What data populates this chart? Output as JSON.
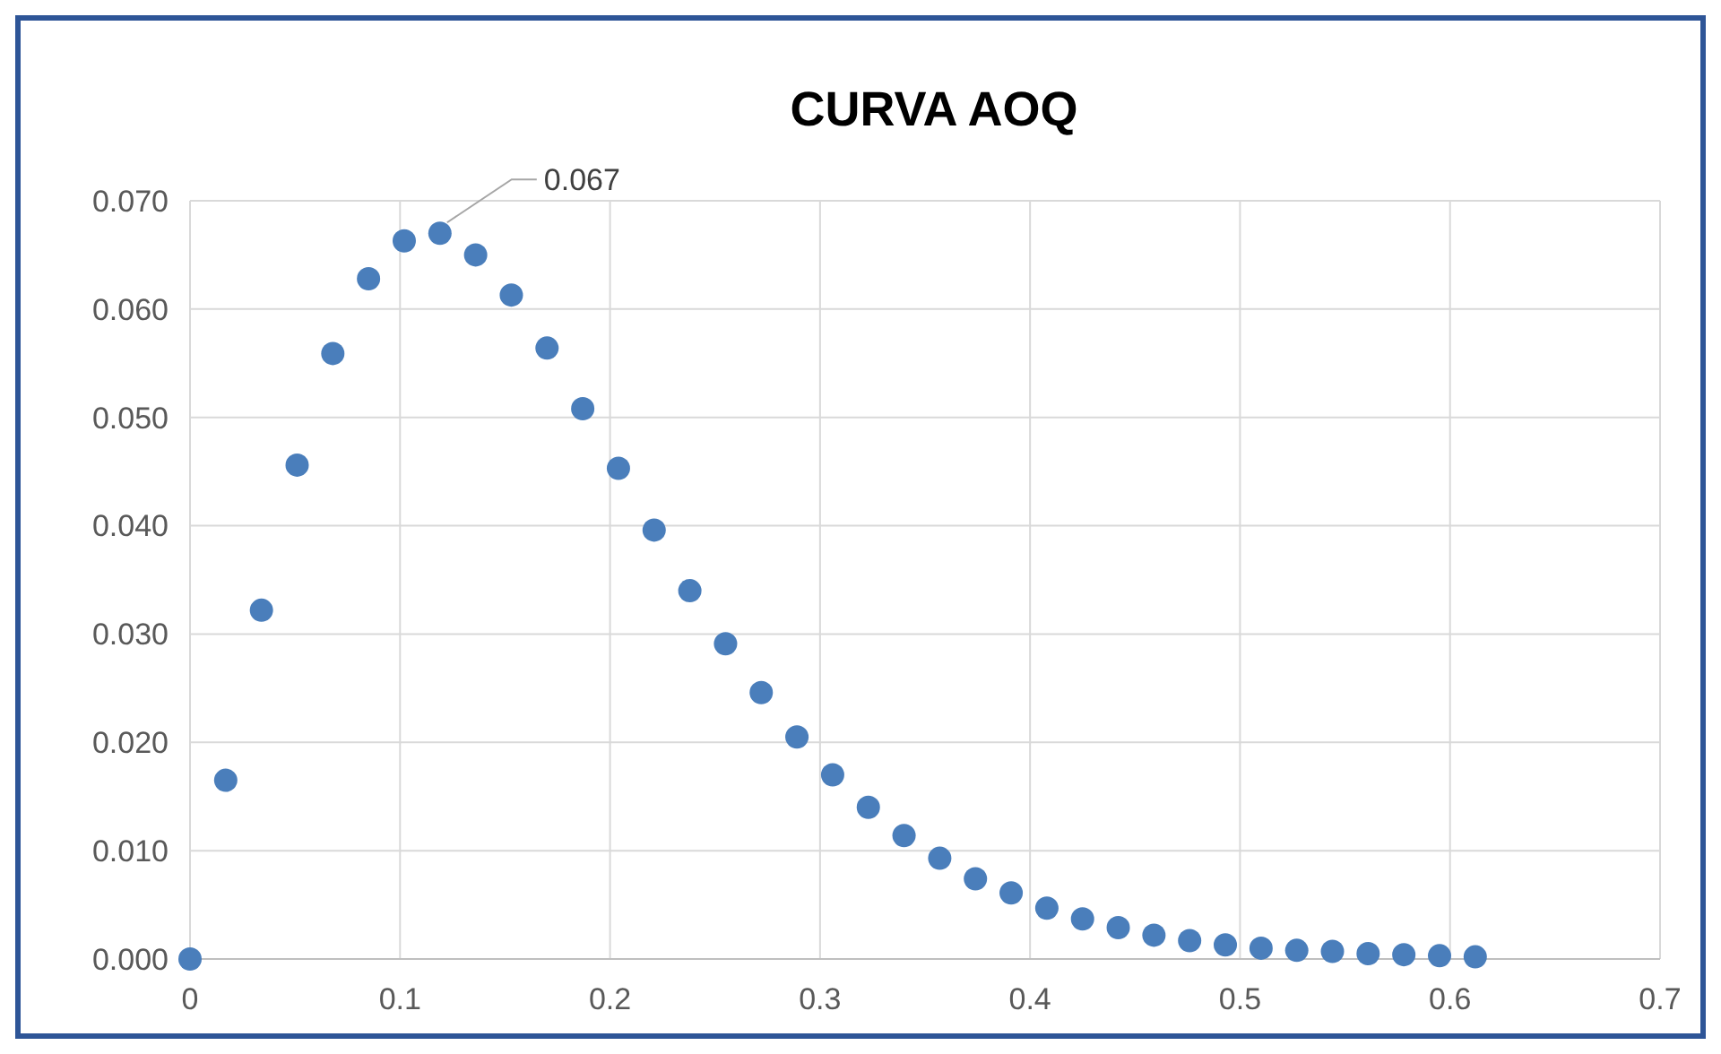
{
  "chart_data": {
    "type": "scatter",
    "title": "CURVA AOQ",
    "x": [
      0,
      0.017,
      0.034,
      0.051,
      0.068,
      0.085,
      0.102,
      0.119,
      0.136,
      0.153,
      0.17,
      0.187,
      0.204,
      0.221,
      0.238,
      0.255,
      0.272,
      0.289,
      0.306,
      0.323,
      0.34,
      0.357,
      0.374,
      0.391,
      0.408,
      0.425,
      0.442,
      0.459,
      0.476,
      0.493,
      0.51,
      0.527,
      0.544,
      0.561,
      0.578,
      0.595,
      0.612
    ],
    "series": [
      {
        "color": "#4a7ebb",
        "values": [
          0,
          0.0165,
          0.0322,
          0.0456,
          0.0559,
          0.0628,
          0.0663,
          0.067,
          0.065,
          0.0613,
          0.0564,
          0.0508,
          0.0453,
          0.0396,
          0.034,
          0.0291,
          0.0246,
          0.0205,
          0.017,
          0.014,
          0.0114,
          0.0093,
          0.0074,
          0.0061,
          0.0047,
          0.0037,
          0.0029,
          0.0022,
          0.0017,
          0.0013,
          0.001,
          0.0008,
          0.0007,
          0.0005,
          0.0004,
          0.0003,
          0.0002
        ]
      }
    ],
    "annotations": [
      {
        "text": "0.067",
        "x": 0.119,
        "y": 0.067
      }
    ],
    "xlim": [
      0,
      0.7
    ],
    "xticks": [
      0,
      0.1,
      0.2,
      0.3,
      0.4,
      0.5,
      0.6,
      0.7
    ],
    "ylim": [
      0,
      0.07
    ],
    "yticks": [
      {
        "value": 0,
        "label": "0.000"
      },
      {
        "value": 0.01,
        "label": "0.010"
      },
      {
        "value": 0.02,
        "label": "0.020"
      },
      {
        "value": 0.03,
        "label": "0.030"
      },
      {
        "value": 0.04,
        "label": "0.040"
      },
      {
        "value": 0.05,
        "label": "0.050"
      },
      {
        "value": 0.06,
        "label": "0.060"
      },
      {
        "value": 0.07,
        "label": "0.070"
      }
    ],
    "grid": true,
    "marker": "circle"
  }
}
